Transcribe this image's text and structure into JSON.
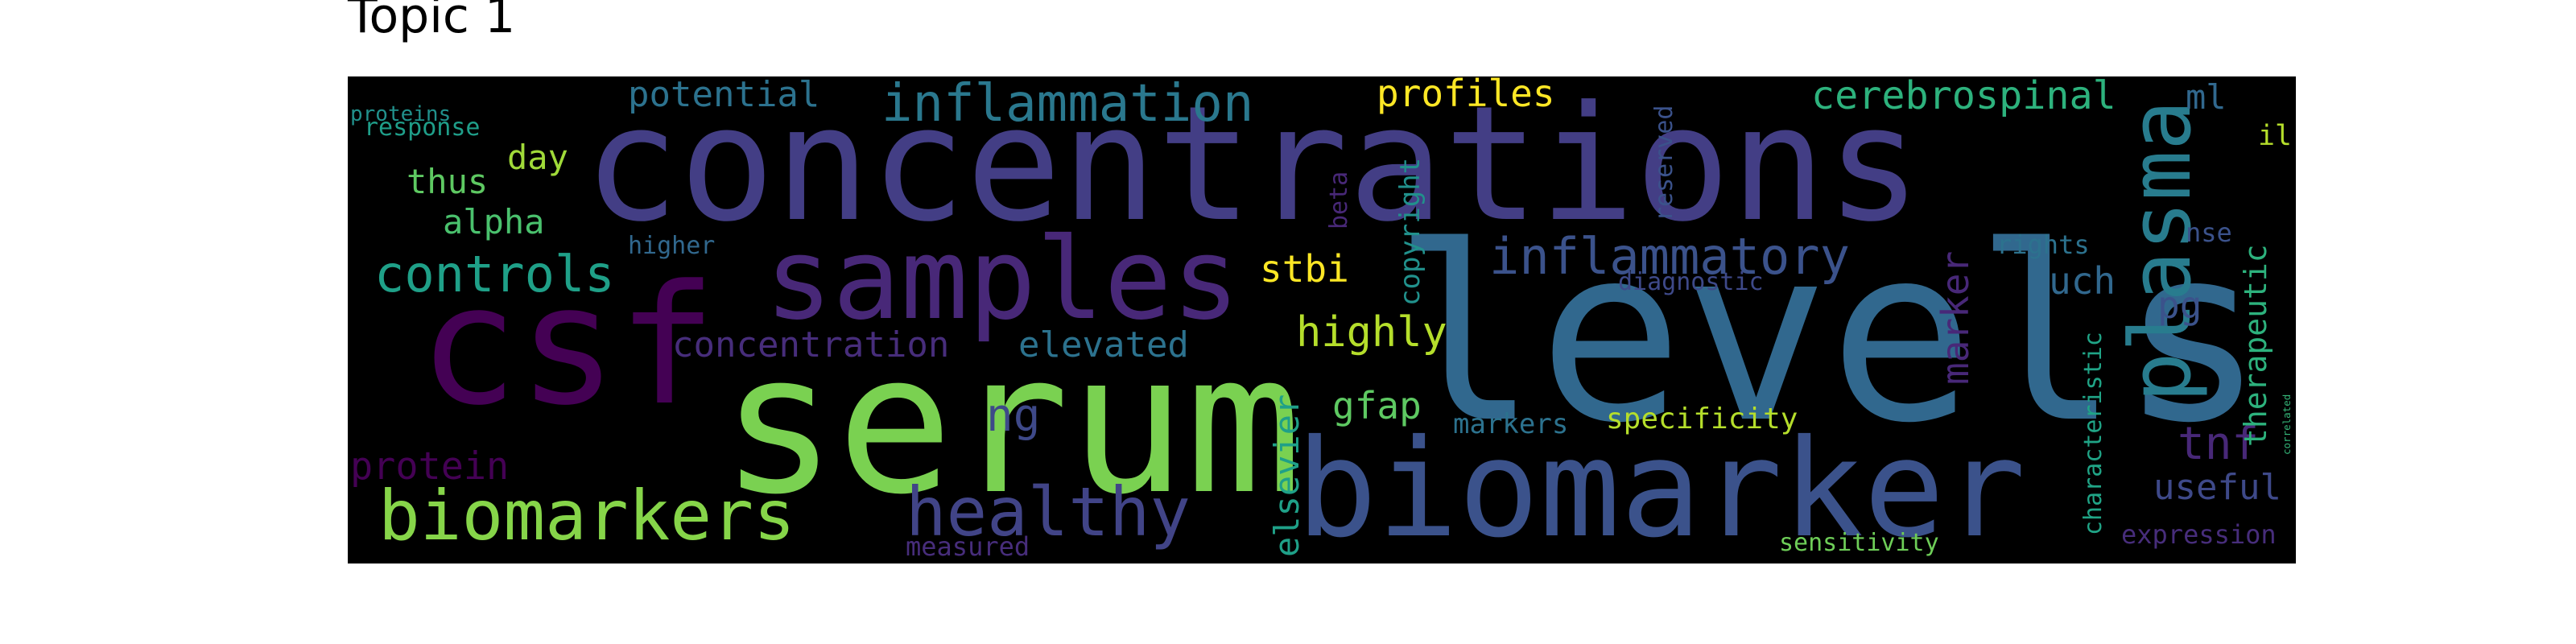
{
  "chart_data": {
    "type": "wordcloud",
    "title": "Topic 1",
    "background": "#000000",
    "words": [
      {
        "text": "concentrations",
        "weight": 1.0,
        "color": "#433e85",
        "vertical": false
      },
      {
        "text": "levels",
        "weight": 0.98,
        "color": "#31688e",
        "vertical": false
      },
      {
        "text": "serum",
        "weight": 0.93,
        "color": "#7ad151",
        "vertical": false
      },
      {
        "text": "biomarker",
        "weight": 0.91,
        "color": "#3b528b",
        "vertical": false
      },
      {
        "text": "csf",
        "weight": 0.88,
        "color": "#440154",
        "vertical": false
      },
      {
        "text": "samples",
        "weight": 0.7,
        "color": "#482878",
        "vertical": false
      },
      {
        "text": "protein",
        "weight": 0.62,
        "color": "#440154",
        "vertical": false
      },
      {
        "text": "plasma",
        "weight": 0.56,
        "color": "#287c8e",
        "vertical": true
      },
      {
        "text": "healthy",
        "weight": 0.5,
        "color": "#414487",
        "vertical": false
      },
      {
        "text": "biomarkers",
        "weight": 0.5,
        "color": "#86d549",
        "vertical": false
      },
      {
        "text": "inflammation",
        "weight": 0.39,
        "color": "#2a788e",
        "vertical": false
      },
      {
        "text": "inflammatory",
        "weight": 0.37,
        "color": "#3b528b",
        "vertical": false
      },
      {
        "text": "controls",
        "weight": 0.36,
        "color": "#1fa088",
        "vertical": false
      },
      {
        "text": "proteins",
        "weight": 0.36,
        "color": "#21918c",
        "vertical": false
      },
      {
        "text": "cerebrospinal",
        "weight": 0.3,
        "color": "#2db27d",
        "vertical": false
      },
      {
        "text": "elevated",
        "weight": 0.28,
        "color": "#2c728e",
        "vertical": false
      },
      {
        "text": "concentration",
        "weight": 0.27,
        "color": "#472d7b",
        "vertical": false
      },
      {
        "text": "ng",
        "weight": 0.32,
        "color": "#3e4989",
        "vertical": false
      },
      {
        "text": "potential",
        "weight": 0.28,
        "color": "#2c728e",
        "vertical": false
      },
      {
        "text": "profiles",
        "weight": 0.28,
        "color": "#fde725",
        "vertical": false
      },
      {
        "text": "highly",
        "weight": 0.3,
        "color": "#b5de2b",
        "vertical": false
      },
      {
        "text": "stbi",
        "weight": 0.28,
        "color": "#fde725",
        "vertical": false
      },
      {
        "text": "gfap",
        "weight": 0.28,
        "color": "#5ec962",
        "vertical": false
      },
      {
        "text": "tnf",
        "weight": 0.3,
        "color": "#482878",
        "vertical": false
      },
      {
        "text": "useful",
        "weight": 0.26,
        "color": "#3e4989",
        "vertical": false
      },
      {
        "text": "uch",
        "weight": 0.26,
        "color": "#31688e",
        "vertical": false
      },
      {
        "text": "pg",
        "weight": 0.26,
        "color": "#3b528b",
        "vertical": false
      },
      {
        "text": "il",
        "weight": 0.28,
        "color": "#b5de2b",
        "vertical": false
      },
      {
        "text": "ml",
        "weight": 0.24,
        "color": "#31688e",
        "vertical": false
      },
      {
        "text": "day",
        "weight": 0.24,
        "color": "#a0da39",
        "vertical": false
      },
      {
        "text": "thus",
        "weight": 0.24,
        "color": "#5ec962",
        "vertical": false
      },
      {
        "text": "alpha",
        "weight": 0.24,
        "color": "#4ac16d",
        "vertical": false
      },
      {
        "text": "specificity",
        "weight": 0.22,
        "color": "#b5de2b",
        "vertical": false
      },
      {
        "text": "markers",
        "weight": 0.2,
        "color": "#2c728e",
        "vertical": false
      },
      {
        "text": "elsevier",
        "weight": 0.26,
        "color": "#1fa088",
        "vertical": true
      },
      {
        "text": "marker",
        "weight": 0.26,
        "color": "#482878",
        "vertical": true
      },
      {
        "text": "therapeutic",
        "weight": 0.24,
        "color": "#2db27d",
        "vertical": true
      },
      {
        "text": "copyright",
        "weight": 0.2,
        "color": "#21918c",
        "vertical": true
      },
      {
        "text": "characteristic",
        "weight": 0.2,
        "color": "#20a486",
        "vertical": true
      },
      {
        "text": "correlated",
        "weight": 0.17,
        "color": "#35b779",
        "vertical": true
      },
      {
        "text": "reserved",
        "weight": 0.17,
        "color": "#3b528b",
        "vertical": true
      },
      {
        "text": "beta",
        "weight": 0.16,
        "color": "#482878",
        "vertical": true
      },
      {
        "text": "rights",
        "weight": 0.18,
        "color": "#2c728e",
        "vertical": false
      },
      {
        "text": "nse",
        "weight": 0.18,
        "color": "#3b528b",
        "vertical": false
      },
      {
        "text": "higher",
        "weight": 0.17,
        "color": "#31688e",
        "vertical": false
      },
      {
        "text": "response",
        "weight": 0.17,
        "color": "#1f9e89",
        "vertical": false
      },
      {
        "text": "diagnostic",
        "weight": 0.16,
        "color": "#3e4989",
        "vertical": false
      },
      {
        "text": "measured",
        "weight": 0.18,
        "color": "#472d7b",
        "vertical": false
      },
      {
        "text": "sensitivity",
        "weight": 0.17,
        "color": "#6ece58",
        "vertical": false
      },
      {
        "text": "expression",
        "weight": 0.17,
        "color": "#472d7b",
        "vertical": false
      }
    ]
  }
}
